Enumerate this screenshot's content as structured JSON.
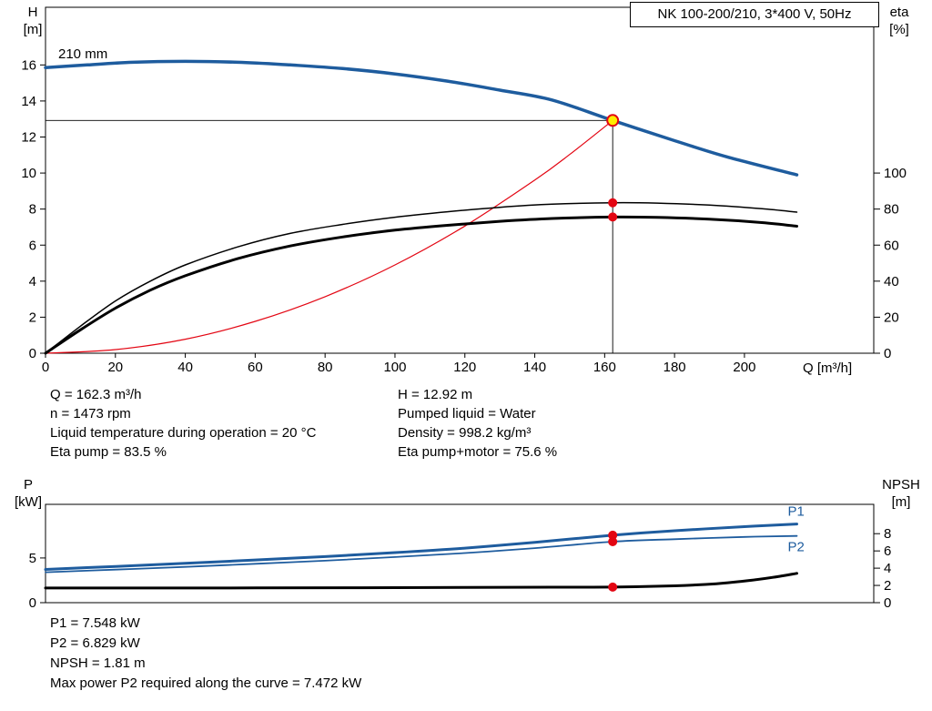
{
  "title_box": "NK 100-200/210, 3*400 V, 50Hz",
  "colors": {
    "blue": "#1e5c9e",
    "black": "#000000",
    "red": "#e30613",
    "duty_yellow": "#ffed00"
  },
  "info_top": {
    "left": [
      "Q = 162.3 m³/h",
      "n = 1473 rpm",
      "Liquid temperature during operation = 20 °C",
      "Eta pump = 83.5 %"
    ],
    "right": [
      "H = 12.92 m",
      "Pumped liquid = Water",
      "Density = 998.2 kg/m³",
      "Eta pump+motor = 75.6 %"
    ]
  },
  "info_bottom": [
    "P1 = 7.548 kW",
    "P2 = 6.829 kW",
    "NPSH = 1.81 m",
    "Max power P2 required along the curve = 7.472 kW"
  ],
  "chart_data": [
    {
      "type": "line",
      "name": "hq-eta-chart",
      "title": "NK 100-200/210, 3*400 V, 50Hz",
      "impeller_label": "210 mm",
      "x_axis": {
        "label": "Q [m³/h]",
        "min": 0,
        "max": 237,
        "ticks": [
          0,
          20,
          40,
          60,
          80,
          100,
          120,
          140,
          160,
          180,
          200
        ]
      },
      "y_left": {
        "label": "H [m]",
        "label_lines": [
          "H",
          "[m]"
        ],
        "min": 0,
        "max": 19.2,
        "ticks": [
          0,
          2,
          4,
          6,
          8,
          10,
          12,
          14,
          16
        ]
      },
      "y_right": {
        "label": "eta [%]",
        "label_lines": [
          "eta",
          "[%]"
        ],
        "min": 0,
        "max": 192,
        "ticks": [
          0,
          20,
          40,
          60,
          80,
          100
        ]
      },
      "crosshair": {
        "q": 162.3,
        "v": 12.92
      },
      "series": [
        {
          "name": "system-curve",
          "axis": "left",
          "color": "red",
          "width": 1.2,
          "points": [
            [
              0,
              0
            ],
            [
              20,
              0.2
            ],
            [
              40,
              0.78
            ],
            [
              60,
              1.77
            ],
            [
              80,
              3.14
            ],
            [
              100,
              4.9
            ],
            [
              120,
              7.06
            ],
            [
              140,
              9.61
            ],
            [
              150,
              11.03
            ],
            [
              162.3,
              12.92
            ]
          ]
        },
        {
          "name": "head-210mm",
          "axis": "left",
          "color": "blue",
          "width": 3.5,
          "points": [
            [
              0,
              15.85
            ],
            [
              12,
              16.0
            ],
            [
              25,
              16.15
            ],
            [
              40,
              16.2
            ],
            [
              55,
              16.15
            ],
            [
              70,
              16.0
            ],
            [
              85,
              15.8
            ],
            [
              100,
              15.5
            ],
            [
              115,
              15.1
            ],
            [
              130,
              14.6
            ],
            [
              145,
              14.05
            ],
            [
              162.3,
              12.92
            ],
            [
              180,
              11.8
            ],
            [
              195,
              10.9
            ],
            [
              215,
              9.9
            ]
          ]
        },
        {
          "name": "eta-pump",
          "axis": "right",
          "color": "black",
          "width": 1.5,
          "points": [
            [
              0,
              0
            ],
            [
              10,
              15
            ],
            [
              20,
              29
            ],
            [
              30,
              40
            ],
            [
              40,
              49
            ],
            [
              55,
              59
            ],
            [
              70,
              66.5
            ],
            [
              85,
              71.5
            ],
            [
              100,
              75.5
            ],
            [
              115,
              78.5
            ],
            [
              130,
              81
            ],
            [
              145,
              82.7
            ],
            [
              162.3,
              83.5
            ],
            [
              175,
              83.3
            ],
            [
              190,
              82.2
            ],
            [
              205,
              80.2
            ],
            [
              215,
              78.3
            ]
          ]
        },
        {
          "name": "eta-pump-motor",
          "axis": "right",
          "color": "black",
          "width": 3,
          "points": [
            [
              0,
              0
            ],
            [
              10,
              13
            ],
            [
              20,
              25
            ],
            [
              30,
              35
            ],
            [
              40,
              43
            ],
            [
              55,
              52.5
            ],
            [
              70,
              59.5
            ],
            [
              85,
              64.5
            ],
            [
              100,
              68.3
            ],
            [
              115,
              71
            ],
            [
              130,
              73.2
            ],
            [
              145,
              74.8
            ],
            [
              162.3,
              75.6
            ],
            [
              175,
              75.4
            ],
            [
              190,
              74.4
            ],
            [
              205,
              72.5
            ],
            [
              215,
              70.5
            ]
          ]
        }
      ],
      "markers": [
        {
          "q": 162.3,
          "v": 83.5,
          "axis": "right",
          "style": "dot"
        },
        {
          "q": 162.3,
          "v": 75.6,
          "axis": "right",
          "style": "dot"
        },
        {
          "q": 162.3,
          "v": 12.92,
          "axis": "left",
          "style": "duty"
        }
      ]
    },
    {
      "type": "line",
      "name": "power-npsh-chart",
      "x_axis": {
        "label": "",
        "min": 0,
        "max": 237,
        "ticks": []
      },
      "y_left": {
        "label": "P [kW]",
        "label_lines": [
          "P",
          "[kW]"
        ],
        "min": 0,
        "max": 11.0,
        "ticks": [
          0,
          5
        ]
      },
      "y_right": {
        "label": "NPSH [m]",
        "label_lines": [
          "NPSH",
          "[m]"
        ],
        "min": 0,
        "max": 11.4,
        "ticks": [
          0,
          2,
          4,
          6,
          8
        ]
      },
      "series": [
        {
          "name": "p1",
          "axis": "left",
          "color": "blue",
          "width": 3,
          "label": "P1",
          "label_dx": -10,
          "label_dy": -9,
          "points": [
            [
              0,
              3.72
            ],
            [
              20,
              4.05
            ],
            [
              40,
              4.4
            ],
            [
              60,
              4.78
            ],
            [
              80,
              5.15
            ],
            [
              100,
              5.6
            ],
            [
              120,
              6.1
            ],
            [
              140,
              6.75
            ],
            [
              162.3,
              7.548
            ],
            [
              180,
              8.05
            ],
            [
              200,
              8.5
            ],
            [
              215,
              8.8
            ]
          ]
        },
        {
          "name": "p2",
          "axis": "left",
          "color": "blue",
          "width": 1.8,
          "label": "P2",
          "label_dx": -10,
          "label_dy": 17,
          "points": [
            [
              0,
              3.4
            ],
            [
              20,
              3.7
            ],
            [
              40,
              4.0
            ],
            [
              60,
              4.35
            ],
            [
              80,
              4.7
            ],
            [
              100,
              5.1
            ],
            [
              120,
              5.55
            ],
            [
              140,
              6.1
            ],
            [
              162.3,
              6.829
            ],
            [
              180,
              7.1
            ],
            [
              200,
              7.35
            ],
            [
              215,
              7.47
            ]
          ]
        },
        {
          "name": "npsh",
          "axis": "right",
          "color": "black",
          "width": 3,
          "points": [
            [
              0,
              1.7
            ],
            [
              30,
              1.7
            ],
            [
              60,
              1.71
            ],
            [
              90,
              1.73
            ],
            [
              120,
              1.76
            ],
            [
              145,
              1.79
            ],
            [
              162.3,
              1.81
            ],
            [
              180,
              1.95
            ],
            [
              192,
              2.2
            ],
            [
              202,
              2.6
            ],
            [
              210,
              3.05
            ],
            [
              215,
              3.4
            ]
          ]
        }
      ],
      "markers": [
        {
          "q": 162.3,
          "v": 7.548,
          "axis": "left",
          "style": "dot"
        },
        {
          "q": 162.3,
          "v": 6.829,
          "axis": "left",
          "style": "dot"
        },
        {
          "q": 162.3,
          "v": 1.81,
          "axis": "right",
          "style": "dot"
        }
      ]
    }
  ]
}
